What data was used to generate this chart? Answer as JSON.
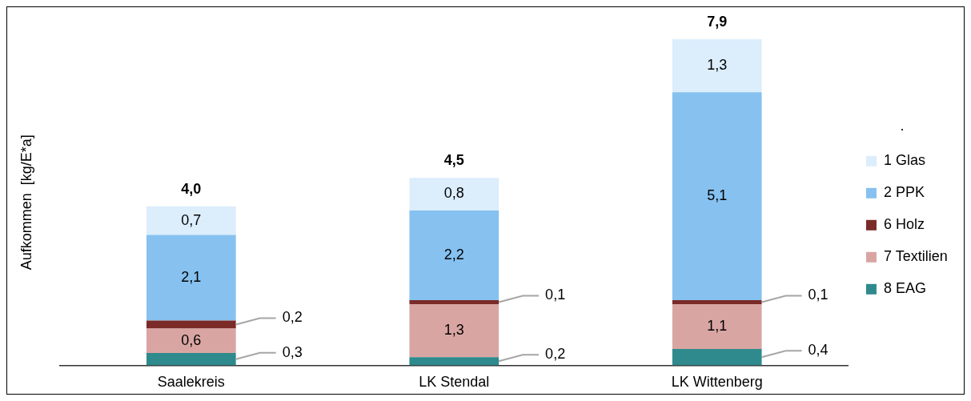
{
  "chart_data": {
    "type": "bar",
    "stacked": true,
    "ylabel": "Aufkommen  [kg/E*a]",
    "legend_title": ".",
    "categories": [
      "Saalekreis",
      "LK Stendal",
      "LK Wittenberg"
    ],
    "series": [
      {
        "name": "8 EAG",
        "color": "#2e8a8c",
        "values": [
          0.3,
          0.2,
          0.4
        ],
        "value_labels": [
          "0,3",
          "0,2",
          "0,4"
        ]
      },
      {
        "name": "7 Textilien",
        "color": "#d9a5a3",
        "values": [
          0.6,
          1.3,
          1.1
        ],
        "value_labels": [
          "0,6",
          "1,3",
          "1,1"
        ]
      },
      {
        "name": "6 Holz",
        "color": "#7a2a27",
        "values": [
          0.2,
          0.1,
          0.1
        ],
        "value_labels": [
          "0,2",
          "0,1",
          "0,1"
        ]
      },
      {
        "name": "2 PPK",
        "color": "#86c1f0",
        "values": [
          2.1,
          2.2,
          5.1
        ],
        "value_labels": [
          "2,1",
          "2,2",
          "5,1"
        ]
      },
      {
        "name": "1 Glas",
        "color": "#dcedfc",
        "values": [
          0.7,
          0.8,
          1.3
        ],
        "value_labels": [
          "0,7",
          "0,8",
          "1,3"
        ]
      }
    ],
    "totals": [
      "4,0",
      "4,5",
      "7,9"
    ],
    "ylim": [
      0,
      8
    ],
    "tick_labels": "x",
    "legend": "right"
  }
}
